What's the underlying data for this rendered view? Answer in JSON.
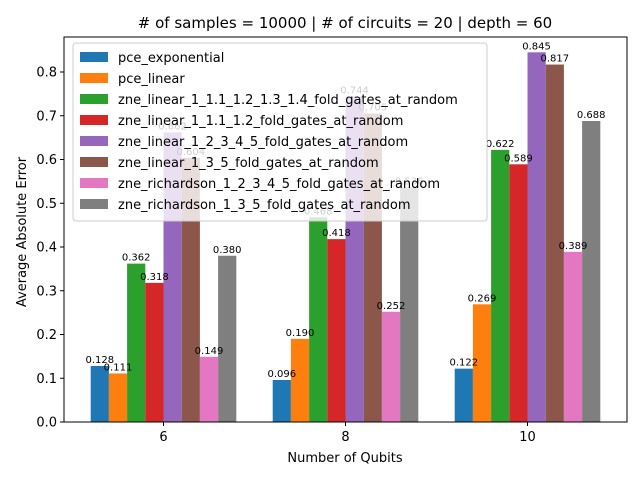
{
  "chart_data": {
    "type": "bar",
    "title": "# of samples = 10000 | # of circuits = 20 | depth = 60",
    "xlabel": "Number of Qubits",
    "ylabel": "Average Absolute Error",
    "categories": [
      "6",
      "8",
      "10"
    ],
    "ylim": [
      0,
      0.88
    ],
    "yticks": [
      "0.0",
      "0.1",
      "0.2",
      "0.3",
      "0.4",
      "0.5",
      "0.6",
      "0.7",
      "0.8"
    ],
    "legend_position": "upper-left",
    "grid": false,
    "series": [
      {
        "name": "pce_exponential",
        "color": "#1f77b4",
        "values": [
          0.128,
          0.096,
          0.122
        ],
        "labels": [
          "0.128",
          "0.096",
          "0.122"
        ]
      },
      {
        "name": "pce_linear",
        "color": "#ff7f0e",
        "values": [
          0.111,
          0.19,
          0.269
        ],
        "labels": [
          "0.111",
          "0.190",
          "0.269"
        ]
      },
      {
        "name": "zne_linear_1_1.1_1.2_1.3_1.4_fold_gates_at_random",
        "color": "#2ca02c",
        "values": [
          0.362,
          0.468,
          0.622
        ],
        "labels": [
          "0.362",
          "0.468",
          "0.622"
        ]
      },
      {
        "name": "zne_linear_1_1.1_1.2_fold_gates_at_random",
        "color": "#d62728",
        "values": [
          0.318,
          0.418,
          0.589
        ],
        "labels": [
          "0.318",
          "0.418",
          "0.589"
        ]
      },
      {
        "name": "zne_linear_1_2_3_4_5_fold_gates_at_random",
        "color": "#9467bd",
        "values": [
          0.662,
          0.744,
          0.845
        ],
        "labels": [
          "0.662",
          "0.744",
          "0.845"
        ]
      },
      {
        "name": "zne_linear_1_3_5_fold_gates_at_random",
        "color": "#8c564b",
        "values": [
          0.604,
          0.705,
          0.817
        ],
        "labels": [
          "0.604",
          "0.705",
          "0.817"
        ]
      },
      {
        "name": "zne_richardson_1_2_3_4_5_fold_gates_at_random",
        "color": "#e377c2",
        "values": [
          0.149,
          0.252,
          0.389
        ],
        "labels": [
          "0.149",
          "0.252",
          "0.389"
        ]
      },
      {
        "name": "zne_richardson_1_3_5_fold_gates_at_random",
        "color": "#7f7f7f",
        "values": [
          0.38,
          0.536,
          0.688
        ],
        "labels": [
          "0.380",
          "0.536",
          "0.688"
        ]
      }
    ]
  }
}
